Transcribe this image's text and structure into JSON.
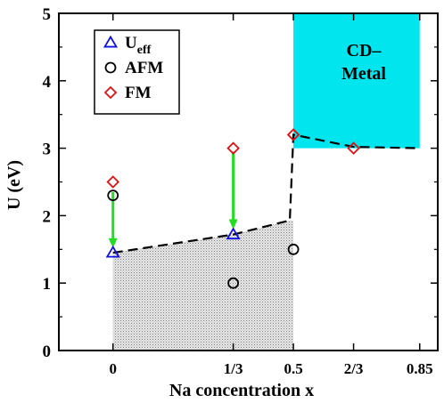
{
  "chart_data": {
    "type": "scatter",
    "xlabel": "Na concentration x",
    "ylabel": "U (eV)",
    "ylim": [
      0,
      5
    ],
    "xlim": [
      -0.15,
      0.9
    ],
    "yticks": [
      0,
      1,
      2,
      3,
      4,
      5
    ],
    "xticks": [
      {
        "value": 0,
        "label": "0"
      },
      {
        "value": 0.3333,
        "label": "1/3"
      },
      {
        "value": 0.5,
        "label": "0.5"
      },
      {
        "value": 0.6667,
        "label": "2/3"
      },
      {
        "value": 0.85,
        "label": "0.85"
      }
    ],
    "series": [
      {
        "name": "U",
        "name_sub": "eff",
        "marker": "triangle",
        "color": "#1010e0",
        "points": [
          {
            "x": 0,
            "y": 1.45
          },
          {
            "x": 0.3333,
            "y": 1.72
          }
        ]
      },
      {
        "name": "AFM",
        "marker": "circle",
        "color": "#000000",
        "points": [
          {
            "x": 0,
            "y": 2.3
          },
          {
            "x": 0.3333,
            "y": 1.0
          },
          {
            "x": 0.5,
            "y": 1.5
          }
        ]
      },
      {
        "name": "FM",
        "marker": "diamond",
        "color": "#e01010",
        "points": [
          {
            "x": 0,
            "y": 2.5
          },
          {
            "x": 0.3333,
            "y": 3.0
          },
          {
            "x": 0.5,
            "y": 3.2
          },
          {
            "x": 0.6667,
            "y": 3.0
          }
        ]
      }
    ],
    "boundary": [
      {
        "x": 0,
        "y": 1.45
      },
      {
        "x": 0.3333,
        "y": 1.72
      },
      {
        "x": 0.49,
        "y": 1.93
      },
      {
        "x": 0.5,
        "y": 3.2
      },
      {
        "x": 0.6667,
        "y": 3.02
      },
      {
        "x": 0.85,
        "y": 3.0
      }
    ],
    "arrows": [
      {
        "x": 0,
        "from": 2.35,
        "to": 1.52
      },
      {
        "x": 0.3333,
        "from": 2.95,
        "to": 1.8
      }
    ],
    "arrow_color": "#22dd22",
    "metal_region": {
      "label_line1": "CD–",
      "label_line2": "Metal",
      "x_from": 0.5,
      "x_to": 0.85,
      "y_from": 3.0,
      "y_to": 5.0,
      "color": "#00e5ee"
    },
    "insulator_region": {
      "x_from": 0,
      "x_to": 0.5,
      "fill": "stipple-gray"
    },
    "legend": {
      "placement": "top-left"
    }
  }
}
